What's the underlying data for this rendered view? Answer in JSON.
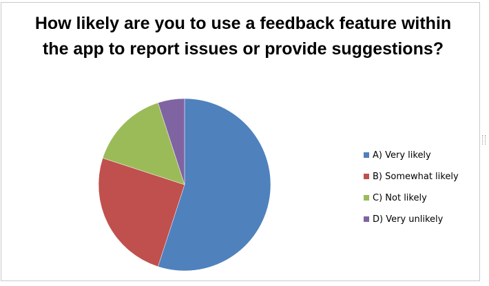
{
  "chart_data": {
    "type": "pie",
    "title": "How likely are you to use a feedback feature within the app to report issues or provide suggestions?",
    "categories": [
      "A) Very likely",
      "B) Somewhat likely",
      "C) Not likely",
      "D) Very unlikely"
    ],
    "values": [
      55,
      25,
      15,
      5
    ],
    "colors": [
      "#4f81bd",
      "#c0504d",
      "#9bbb59",
      "#8064a2"
    ],
    "legend_position": "right"
  }
}
